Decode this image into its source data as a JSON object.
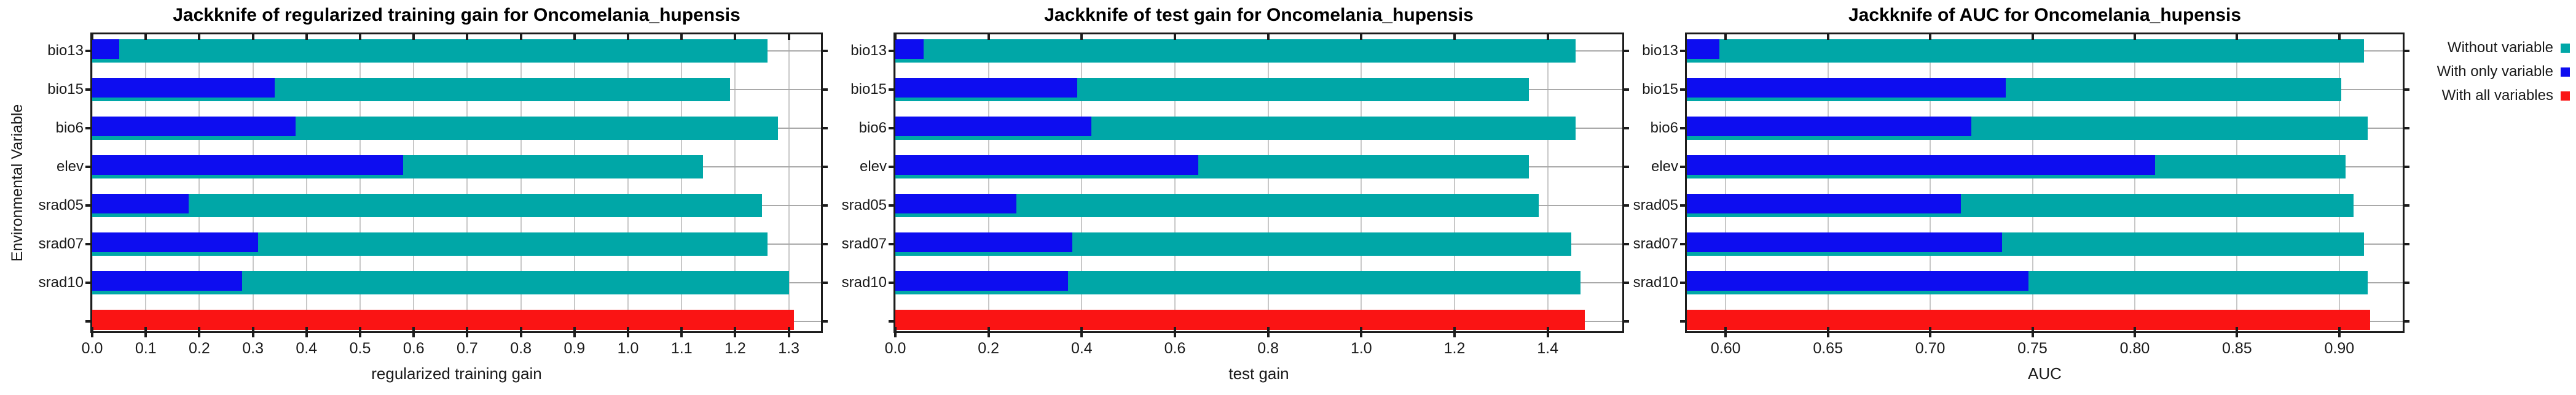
{
  "figure": {
    "description": "Jackknife of variable importance figure with three horizontal bar charts",
    "background": "#FFFFFF"
  },
  "style": {
    "axis": "#1C1C1C",
    "text": "#1A1A1A",
    "grid_v": "#C8C8C8",
    "grid_h": "#A9A9A9",
    "teal": "#00A7A7",
    "blue": "#0D0DF0",
    "red": "#FA1414"
  },
  "legend": {
    "position": "top-right",
    "items": [
      {
        "label": "Without variable",
        "color": "#00A7A7"
      },
      {
        "label": "With only variable",
        "color": "#0D0DF0"
      },
      {
        "label": "With all variables",
        "color": "#FA1414"
      }
    ]
  },
  "chart_data": [
    {
      "type": "bar",
      "orientation": "horizontal",
      "title": "Jackknife of regularized training gain for Oncomelania_hupensis",
      "xlabel": "regularized training gain",
      "ylabel": "Environmental Variable",
      "grid": true,
      "categories": [
        "bio13",
        "bio15",
        "bio6",
        "elev",
        "srad05",
        "srad07",
        "srad10"
      ],
      "xlim": [
        0,
        1.36
      ],
      "xtick_values": [
        0.0,
        0.1,
        0.2,
        0.3,
        0.4,
        0.5,
        0.6,
        0.7,
        0.8,
        0.9,
        1.0,
        1.1,
        1.2,
        1.3
      ],
      "xtick_labels": [
        "0.0",
        "0.1",
        "0.2",
        "0.3",
        "0.4",
        "0.5",
        "0.6",
        "0.7",
        "0.8",
        "0.9",
        "1.0",
        "1.1",
        "1.2",
        "1.3"
      ],
      "series": [
        {
          "name": "Without variable",
          "color": "#00A7A7",
          "values": [
            1.26,
            1.19,
            1.28,
            1.14,
            1.25,
            1.26,
            1.3
          ]
        },
        {
          "name": "With only variable",
          "color": "#0D0DF0",
          "values": [
            0.05,
            0.34,
            0.38,
            0.58,
            0.18,
            0.31,
            0.28
          ]
        },
        {
          "name": "With all variables",
          "color": "#FA1414",
          "values": [
            1.31
          ]
        }
      ]
    },
    {
      "type": "bar",
      "orientation": "horizontal",
      "title": "Jackknife of test gain for Oncomelania_hupensis",
      "xlabel": "test gain",
      "ylabel": "",
      "grid": true,
      "categories": [
        "bio13",
        "bio15",
        "bio6",
        "elev",
        "srad05",
        "srad07",
        "srad10"
      ],
      "xlim": [
        0,
        1.56
      ],
      "xtick_values": [
        0.0,
        0.2,
        0.4,
        0.6,
        0.8,
        1.0,
        1.2,
        1.4
      ],
      "xtick_labels": [
        "0.0",
        "0.2",
        "0.4",
        "0.6",
        "0.8",
        "1.0",
        "1.2",
        "1.4"
      ],
      "series": [
        {
          "name": "Without variable",
          "color": "#00A7A7",
          "values": [
            1.46,
            1.36,
            1.46,
            1.36,
            1.38,
            1.45,
            1.47
          ]
        },
        {
          "name": "With only variable",
          "color": "#0D0DF0",
          "values": [
            0.06,
            0.39,
            0.42,
            0.65,
            0.26,
            0.38,
            0.37
          ]
        },
        {
          "name": "With all variables",
          "color": "#FA1414",
          "values": [
            1.48
          ]
        }
      ]
    },
    {
      "type": "bar",
      "orientation": "horizontal",
      "title": "Jackknife of AUC for Oncomelania_hupensis",
      "xlabel": "AUC",
      "ylabel": "",
      "grid": true,
      "categories": [
        "bio13",
        "bio15",
        "bio6",
        "elev",
        "srad05",
        "srad07",
        "srad10"
      ],
      "xlim": [
        0.581,
        0.931
      ],
      "xtick_values": [
        0.6,
        0.65,
        0.7,
        0.75,
        0.8,
        0.85,
        0.9
      ],
      "xtick_labels": [
        "0.60",
        "0.65",
        "0.70",
        "0.75",
        "0.80",
        "0.85",
        "0.90"
      ],
      "series": [
        {
          "name": "Without variable",
          "color": "#00A7A7",
          "values": [
            0.912,
            0.901,
            0.914,
            0.903,
            0.907,
            0.912,
            0.914
          ]
        },
        {
          "name": "With only variable",
          "color": "#0D0DF0",
          "values": [
            0.597,
            0.737,
            0.72,
            0.81,
            0.715,
            0.735,
            0.748
          ]
        },
        {
          "name": "With all variables",
          "color": "#FA1414",
          "values": [
            0.915
          ]
        }
      ]
    }
  ]
}
